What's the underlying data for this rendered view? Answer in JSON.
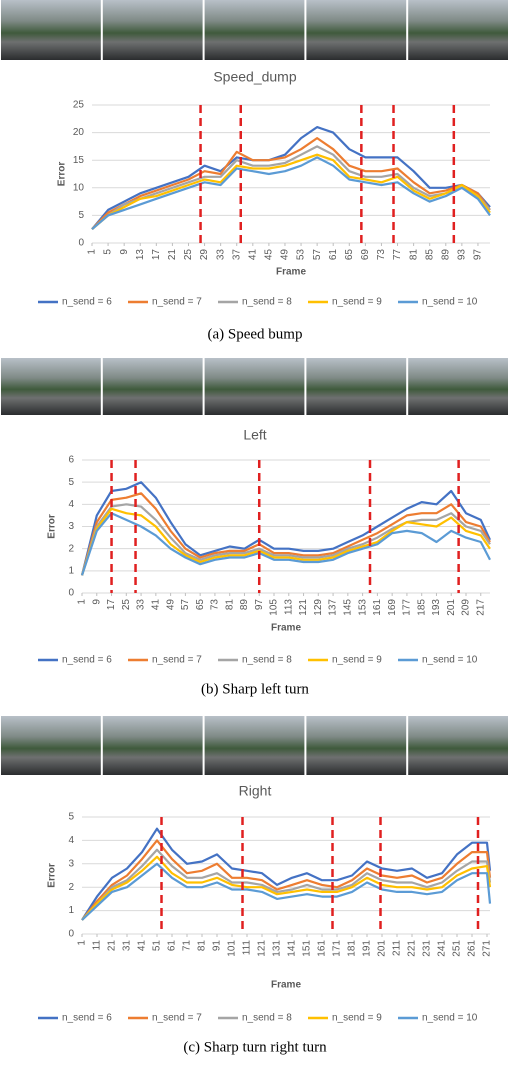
{
  "chart_data": [
    {
      "type": "line",
      "title": "Speed_dump",
      "xlabel": "Frame",
      "ylabel": "Error",
      "caption": "(a) Speed bump",
      "grid": true,
      "x": [
        1,
        5,
        9,
        13,
        17,
        21,
        25,
        29,
        33,
        37,
        41,
        45,
        49,
        53,
        57,
        61,
        65,
        69,
        73,
        77,
        81,
        85,
        89,
        93,
        97,
        100
      ],
      "xlim": [
        1,
        100
      ],
      "xticks": [
        1,
        5,
        9,
        13,
        17,
        21,
        25,
        29,
        33,
        37,
        41,
        45,
        49,
        53,
        57,
        61,
        65,
        69,
        73,
        77,
        81,
        85,
        89,
        93,
        97
      ],
      "ylim": [
        0,
        25
      ],
      "yticks": [
        0,
        5,
        10,
        15,
        20,
        25
      ],
      "reference_lines": {
        "color": "#e02020",
        "x": [
          28,
          38,
          68,
          76,
          91
        ]
      },
      "series": [
        {
          "name": "n_send = 6",
          "color": "#4472c4",
          "values": [
            2.5,
            6,
            7.5,
            9,
            10,
            11,
            12,
            14,
            13,
            15.5,
            15,
            15,
            16,
            19,
            21,
            20,
            17,
            15.5,
            15.5,
            15.5,
            13,
            10,
            10,
            10.5,
            9,
            6.5
          ]
        },
        {
          "name": "n_send = 7",
          "color": "#ed7d31",
          "values": [
            2.5,
            5.5,
            7,
            8.5,
            9.5,
            10.5,
            11.5,
            13,
            12.5,
            16.5,
            15,
            15,
            15.5,
            17,
            19,
            17,
            14,
            13,
            13,
            13.5,
            11,
            9,
            9.5,
            10.5,
            9,
            6
          ]
        },
        {
          "name": "n_send = 8",
          "color": "#a5a5a5",
          "values": [
            2.5,
            5,
            7,
            8,
            9,
            10,
            11,
            12,
            12,
            15,
            14,
            14,
            14.5,
            16,
            17.5,
            16,
            13,
            12,
            12,
            12.5,
            10,
            8.5,
            9,
            10,
            8.5,
            6
          ]
        },
        {
          "name": "n_send = 9",
          "color": "#ffc000",
          "values": [
            2.5,
            5,
            6.5,
            8,
            8.5,
            9.5,
            10.5,
            11.5,
            11,
            14,
            13.5,
            13.5,
            14,
            15,
            16,
            15,
            12,
            11.5,
            11,
            12,
            9.5,
            8,
            9,
            10.5,
            8.5,
            5.5
          ]
        },
        {
          "name": "n_send = 10",
          "color": "#5b9bd5",
          "values": [
            2.5,
            5,
            6,
            7,
            8,
            9,
            10,
            11,
            10.5,
            13.5,
            13,
            12.5,
            13,
            14,
            15.5,
            14,
            11.5,
            11,
            10.5,
            11,
            9,
            7.5,
            8.5,
            10,
            8,
            5
          ]
        }
      ]
    },
    {
      "type": "line",
      "title": "Left",
      "xlabel": "Frame",
      "ylabel": "Error",
      "caption": "(b) Sharp left turn",
      "grid": true,
      "x": [
        1,
        9,
        17,
        25,
        33,
        41,
        49,
        57,
        65,
        73,
        81,
        89,
        97,
        105,
        113,
        121,
        129,
        137,
        145,
        153,
        161,
        169,
        177,
        185,
        193,
        201,
        209,
        217,
        222
      ],
      "xlim": [
        1,
        222
      ],
      "xticks": [
        1,
        9,
        17,
        25,
        33,
        41,
        49,
        57,
        65,
        73,
        81,
        89,
        97,
        105,
        113,
        121,
        129,
        137,
        145,
        153,
        161,
        169,
        177,
        185,
        193,
        201,
        209,
        217
      ],
      "ylim": [
        0,
        6
      ],
      "yticks": [
        0,
        1,
        2,
        3,
        4,
        5,
        6
      ],
      "reference_lines": {
        "color": "#e02020",
        "x": [
          17,
          30,
          97,
          157,
          205
        ]
      },
      "series": [
        {
          "name": "n_send = 6",
          "color": "#4472c4",
          "values": [
            0.8,
            3.5,
            4.6,
            4.7,
            5.0,
            4.3,
            3.2,
            2.2,
            1.7,
            1.9,
            2.1,
            2.0,
            2.4,
            2.0,
            2.0,
            1.9,
            1.9,
            2.0,
            2.3,
            2.6,
            3.0,
            3.4,
            3.8,
            4.1,
            4.0,
            4.6,
            3.6,
            3.3,
            2.4
          ]
        },
        {
          "name": "n_send = 7",
          "color": "#ed7d31",
          "values": [
            0.8,
            3.2,
            4.2,
            4.3,
            4.5,
            3.8,
            2.8,
            2.0,
            1.6,
            1.8,
            1.9,
            1.9,
            2.2,
            1.8,
            1.8,
            1.7,
            1.7,
            1.8,
            2.1,
            2.4,
            2.7,
            3.1,
            3.5,
            3.6,
            3.6,
            4.0,
            3.2,
            3.0,
            2.3
          ]
        },
        {
          "name": "n_send = 8",
          "color": "#a5a5a5",
          "values": [
            0.8,
            3.0,
            3.9,
            4.0,
            3.9,
            3.3,
            2.5,
            1.8,
            1.5,
            1.7,
            1.8,
            1.8,
            2.0,
            1.7,
            1.7,
            1.6,
            1.6,
            1.7,
            2.0,
            2.2,
            2.5,
            2.9,
            3.2,
            3.3,
            3.3,
            3.6,
            3.0,
            2.8,
            2.2
          ]
        },
        {
          "name": "n_send = 9",
          "color": "#ffc000",
          "values": [
            0.8,
            2.9,
            3.8,
            3.6,
            3.5,
            3.0,
            2.2,
            1.7,
            1.4,
            1.6,
            1.7,
            1.7,
            1.9,
            1.6,
            1.6,
            1.5,
            1.5,
            1.6,
            1.9,
            2.1,
            2.3,
            2.8,
            3.2,
            3.1,
            3.0,
            3.4,
            2.8,
            2.6,
            2.0
          ]
        },
        {
          "name": "n_send = 10",
          "color": "#5b9bd5",
          "values": [
            0.8,
            2.8,
            3.6,
            3.3,
            3.0,
            2.6,
            2.0,
            1.6,
            1.3,
            1.5,
            1.6,
            1.6,
            1.8,
            1.5,
            1.5,
            1.4,
            1.4,
            1.5,
            1.8,
            2.0,
            2.2,
            2.7,
            2.8,
            2.7,
            2.3,
            2.8,
            2.5,
            2.3,
            1.5
          ]
        }
      ]
    },
    {
      "type": "line",
      "title": "Right",
      "xlabel": "Frame",
      "ylabel": "Error",
      "caption": "(c) Sharp turn right turn",
      "grid": true,
      "x": [
        1,
        11,
        21,
        31,
        41,
        51,
        61,
        71,
        81,
        91,
        101,
        111,
        121,
        131,
        141,
        151,
        161,
        171,
        181,
        191,
        201,
        211,
        221,
        231,
        241,
        251,
        261,
        271,
        273
      ],
      "xlim": [
        1,
        273
      ],
      "xticks": [
        1,
        11,
        21,
        31,
        41,
        51,
        61,
        71,
        81,
        91,
        101,
        111,
        121,
        131,
        141,
        151,
        161,
        171,
        181,
        191,
        201,
        211,
        221,
        231,
        241,
        251,
        261,
        271
      ],
      "ylim": [
        0,
        5
      ],
      "yticks": [
        0,
        1,
        2,
        3,
        4,
        5
      ],
      "reference_lines": {
        "color": "#e02020",
        "x": [
          54,
          108,
          168,
          200,
          265
        ]
      },
      "series": [
        {
          "name": "n_send = 6",
          "color": "#4472c4",
          "values": [
            0.6,
            1.6,
            2.4,
            2.8,
            3.5,
            4.5,
            3.6,
            3.0,
            3.1,
            3.4,
            2.8,
            2.7,
            2.6,
            2.1,
            2.4,
            2.6,
            2.3,
            2.3,
            2.5,
            3.1,
            2.8,
            2.7,
            2.8,
            2.4,
            2.6,
            3.4,
            3.9,
            3.9,
            2.7
          ]
        },
        {
          "name": "n_send = 7",
          "color": "#ed7d31",
          "values": [
            0.6,
            1.4,
            2.1,
            2.5,
            3.2,
            4.0,
            3.2,
            2.6,
            2.7,
            3.0,
            2.4,
            2.4,
            2.3,
            1.9,
            2.1,
            2.3,
            2.1,
            2.0,
            2.3,
            2.8,
            2.5,
            2.4,
            2.5,
            2.2,
            2.4,
            3.0,
            3.5,
            3.5,
            2.4
          ]
        },
        {
          "name": "n_send = 8",
          "color": "#a5a5a5",
          "values": [
            0.6,
            1.3,
            2.0,
            2.3,
            2.9,
            3.6,
            2.9,
            2.4,
            2.4,
            2.6,
            2.2,
            2.2,
            2.1,
            1.8,
            1.9,
            2.1,
            1.9,
            1.9,
            2.1,
            2.6,
            2.3,
            2.2,
            2.2,
            2.0,
            2.2,
            2.7,
            3.1,
            3.1,
            2.2
          ]
        },
        {
          "name": "n_send = 9",
          "color": "#ffc000",
          "values": [
            0.6,
            1.3,
            1.9,
            2.2,
            2.7,
            3.3,
            2.6,
            2.2,
            2.2,
            2.4,
            2.1,
            2.0,
            2.0,
            1.7,
            1.8,
            1.9,
            1.8,
            1.8,
            2.0,
            2.4,
            2.1,
            2.0,
            2.0,
            1.9,
            2.0,
            2.5,
            2.8,
            2.9,
            2.0
          ]
        },
        {
          "name": "n_send = 10",
          "color": "#5b9bd5",
          "values": [
            0.6,
            1.2,
            1.8,
            2.0,
            2.5,
            3.0,
            2.4,
            2.0,
            2.0,
            2.2,
            1.9,
            1.9,
            1.8,
            1.5,
            1.6,
            1.7,
            1.6,
            1.6,
            1.8,
            2.2,
            1.9,
            1.8,
            1.8,
            1.7,
            1.8,
            2.3,
            2.6,
            2.6,
            1.3
          ]
        }
      ]
    }
  ]
}
